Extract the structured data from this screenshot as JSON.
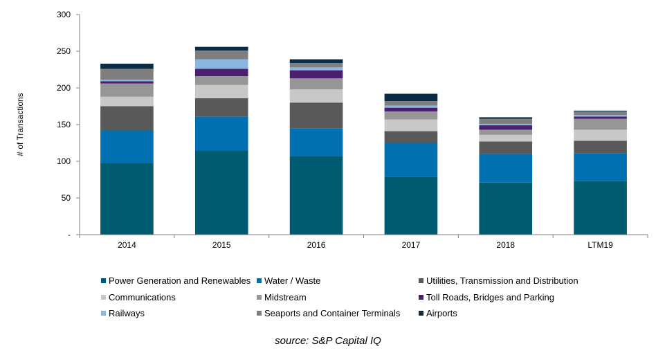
{
  "chart_data": {
    "type": "bar",
    "stacked": true,
    "categories": [
      "2014",
      "2015",
      "2016",
      "2017",
      "2018",
      "LTM19"
    ],
    "ylabel": "# of Transactions",
    "ylim": [
      0,
      300
    ],
    "yticks": [
      "-",
      "50",
      "100",
      "150",
      "200",
      "250",
      "300"
    ],
    "ytick_values": [
      0,
      50,
      100,
      150,
      200,
      250,
      300
    ],
    "legend_position": "bottom",
    "series": [
      {
        "name": "Power Generation and Renewables",
        "color": "#005A70",
        "values": [
          98,
          115,
          107,
          79,
          71,
          73
        ]
      },
      {
        "name": "Water / Waste",
        "color": "#0070B0",
        "values": [
          44,
          46,
          38,
          46,
          39,
          38
        ]
      },
      {
        "name": "Utilities, Transmission and Distribution",
        "color": "#595959",
        "values": [
          33,
          25,
          35,
          16,
          17,
          17
        ]
      },
      {
        "name": "Communications",
        "color": "#C8C8C8",
        "values": [
          13,
          18,
          18,
          16,
          9,
          15
        ]
      },
      {
        "name": "Midstream",
        "color": "#969696",
        "values": [
          18,
          12,
          15,
          11,
          7,
          15
        ]
      },
      {
        "name": "Toll Roads, Bridges and Parking",
        "color": "#4B1E6E",
        "values": [
          3,
          10,
          11,
          5,
          6,
          3
        ]
      },
      {
        "name": "Railways",
        "color": "#8CB4E0",
        "values": [
          2,
          13,
          4,
          3,
          2,
          2
        ]
      },
      {
        "name": "Seaports and Container Terminals",
        "color": "#7F7F7F",
        "values": [
          15,
          12,
          6,
          6,
          7,
          5
        ]
      },
      {
        "name": "Airports",
        "color": "#0A2A45",
        "values": [
          7,
          5,
          5,
          10,
          2,
          1
        ]
      }
    ]
  },
  "source": "source:  S&P Capital IQ"
}
